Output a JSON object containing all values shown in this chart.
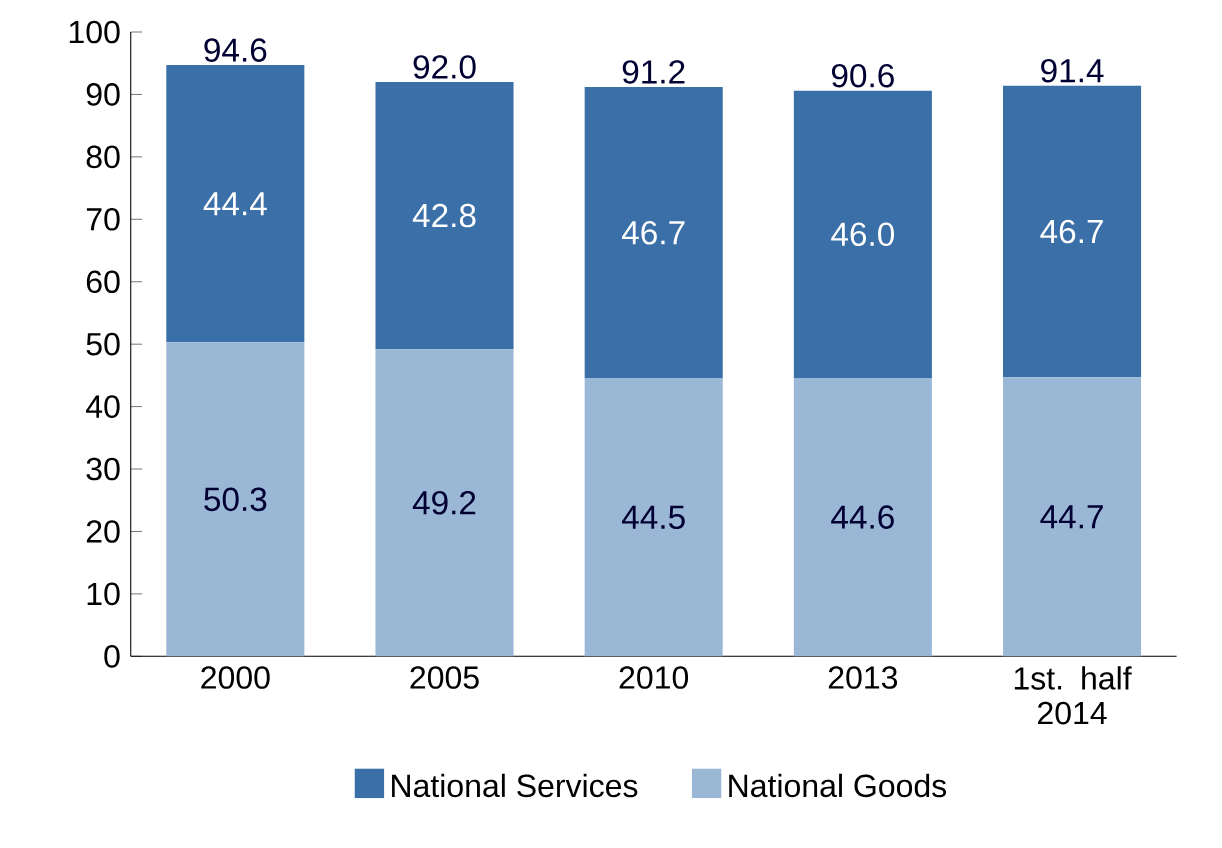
{
  "chart_data": {
    "type": "bar",
    "stacked": true,
    "categories": [
      "2000",
      "2005",
      "2010",
      "2013",
      "1st. half 2014"
    ],
    "series": [
      {
        "name": "National Goods",
        "color": "#9bb7d6",
        "values": [
          50.3,
          49.2,
          44.5,
          44.6,
          44.7
        ],
        "value_labels": [
          "50.3",
          "49.2",
          "44.5",
          "44.6",
          "44.7"
        ]
      },
      {
        "name": "National Services",
        "color": "#3a6fa8",
        "values": [
          44.4,
          42.8,
          46.7,
          46.0,
          46.7
        ],
        "value_labels": [
          "44.4",
          "42.8",
          "46.7",
          "46.0",
          "46.7"
        ]
      }
    ],
    "totals": [
      "94.6",
      "92.0",
      "91.2",
      "90.6",
      "91.4"
    ],
    "ylim": [
      0,
      100
    ],
    "yticks": [
      0,
      10,
      20,
      30,
      40,
      50,
      60,
      70,
      80,
      90,
      100
    ],
    "grid": false,
    "legend": "bottom"
  }
}
